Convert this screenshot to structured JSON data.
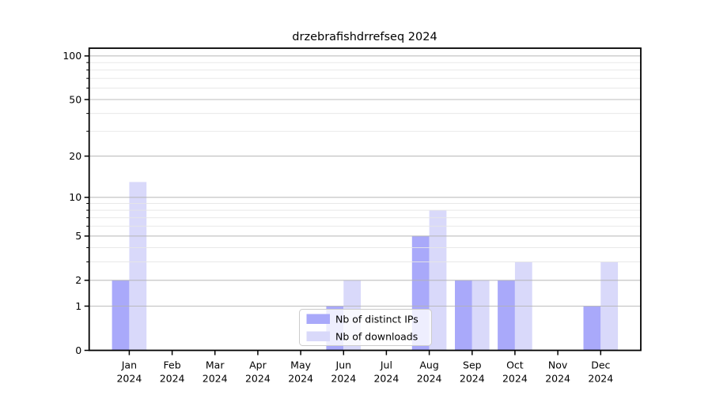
{
  "chart_data": {
    "type": "bar",
    "title": "drzebrafishdrrefseq 2024",
    "categories": [
      "Jan 2024",
      "Feb 2024",
      "Mar 2024",
      "Apr 2024",
      "May 2024",
      "Jun 2024",
      "Jul 2024",
      "Aug 2024",
      "Sep 2024",
      "Oct 2024",
      "Nov 2024",
      "Dec 2024"
    ],
    "series": [
      {
        "name": "Nb of distinct IPs",
        "color": "#a9a9fa",
        "values": [
          2,
          0,
          0,
          0,
          0,
          1,
          0,
          5,
          2,
          2,
          0,
          1
        ]
      },
      {
        "name": "Nb of downloads",
        "color": "#d9d9fa",
        "values": [
          13,
          0,
          0,
          0,
          0,
          2,
          0,
          8,
          2,
          3,
          0,
          3
        ]
      }
    ],
    "xlabel": "",
    "ylabel": "",
    "yscale": "log1p",
    "ylim": [
      0,
      113
    ],
    "yticks": [
      0,
      1,
      2,
      5,
      10,
      20,
      50,
      100
    ],
    "minor_yticks": [
      3,
      4,
      6,
      7,
      8,
      9,
      30,
      40,
      60,
      70,
      80,
      90
    ],
    "grid": "horizontal major and minor, drawn above bars",
    "legend": {
      "position": "bottom-center",
      "entries": [
        "Nb of distinct IPs",
        "Nb of downloads"
      ]
    }
  },
  "colors": {
    "background": "#ffffff",
    "axis": "#000000",
    "major_grid": "#b3b3b3",
    "minor_grid": "#e6e6e6",
    "legend_border": "#cccccc",
    "legend_background": "#ffffff",
    "bar_ips": "#a9a9fa",
    "bar_downloads": "#d9d9fa"
  }
}
